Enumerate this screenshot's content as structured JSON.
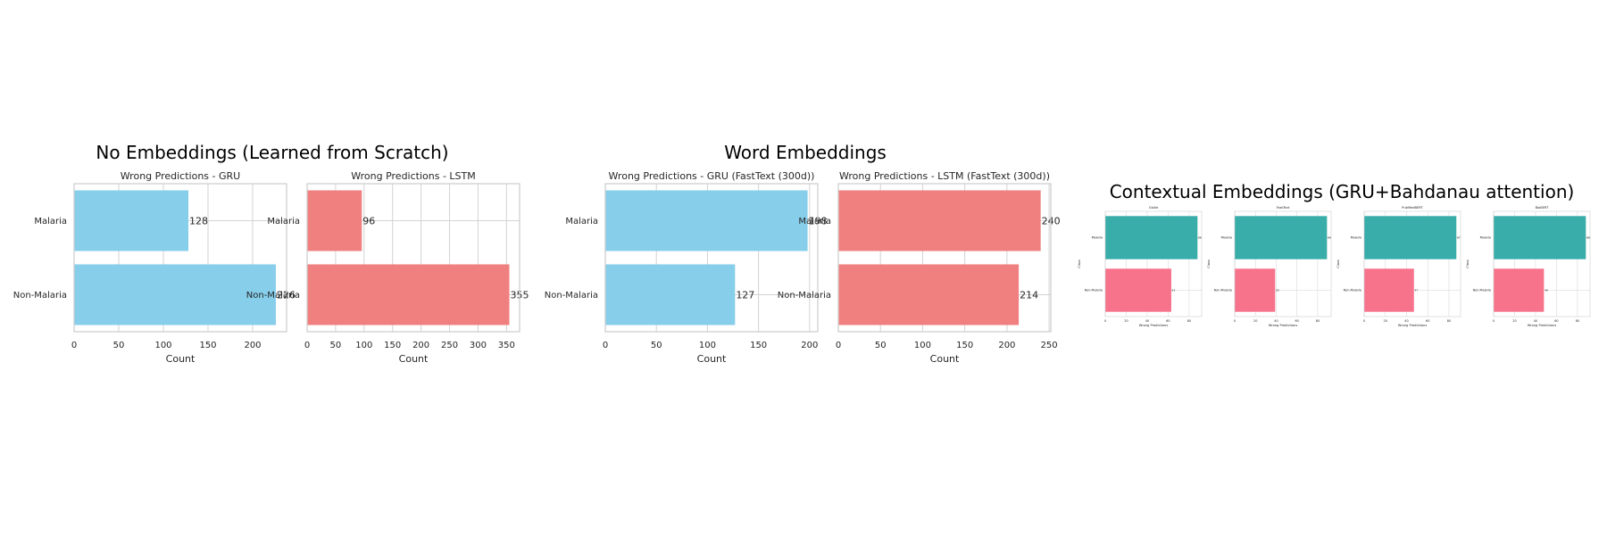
{
  "groups": [
    {
      "title": "No Embeddings (Learned from Scratch)"
    },
    {
      "title": "Word Embeddings"
    },
    {
      "title": "Contextual Embeddings (GRU+Bahdanau attention)"
    }
  ],
  "colors": {
    "gru": "#87CEEB",
    "lstm": "#F08080",
    "ctx_malaria": "#38ADA9",
    "ctx_non_malaria": "#F7738C",
    "grid": "#D3D3D3",
    "spine": "#CCCCCC",
    "text": "#262626"
  },
  "chart_data": [
    {
      "type": "bar",
      "orientation": "horizontal",
      "title": "Wrong Predictions - GRU",
      "categories": [
        "Malaria",
        "Non-Malaria"
      ],
      "values": [
        128,
        226
      ],
      "xlabel": "Count",
      "ylabel": "",
      "xlim": [
        0,
        238
      ],
      "xticks": [
        0,
        50,
        100,
        150,
        200
      ],
      "color": "gru",
      "grid": true,
      "data_labels": true
    },
    {
      "type": "bar",
      "orientation": "horizontal",
      "title": "Wrong Predictions - LSTM",
      "categories": [
        "Malaria",
        "Non-Malaria"
      ],
      "values": [
        96,
        355
      ],
      "xlabel": "Count",
      "ylabel": "",
      "xlim": [
        0,
        373
      ],
      "xticks": [
        0,
        50,
        100,
        150,
        200,
        250,
        300,
        350
      ],
      "color": "lstm",
      "grid": true,
      "data_labels": true
    },
    {
      "type": "bar",
      "orientation": "horizontal",
      "title": "Wrong Predictions - GRU (FastText (300d))",
      "categories": [
        "Malaria",
        "Non-Malaria"
      ],
      "values": [
        198,
        127
      ],
      "xlabel": "Count",
      "ylabel": "",
      "xlim": [
        0,
        208
      ],
      "xticks": [
        0,
        50,
        100,
        150,
        200
      ],
      "color": "gru",
      "grid": true,
      "data_labels": true
    },
    {
      "type": "bar",
      "orientation": "horizontal",
      "title": "Wrong Predictions - LSTM (FastText (300d))",
      "categories": [
        "Malaria",
        "Non-Malaria"
      ],
      "values": [
        240,
        214
      ],
      "xlabel": "Count",
      "ylabel": "",
      "xlim": [
        0,
        252
      ],
      "xticks": [
        0,
        50,
        100,
        150,
        200,
        250
      ],
      "color": "lstm",
      "grid": true,
      "data_labels": true
    },
    {
      "type": "bar",
      "orientation": "horizontal",
      "title": "GloVe",
      "categories": [
        "Malaria",
        "Non-Malaria"
      ],
      "values": [
        88,
        63
      ],
      "xlabel": "Wrong Predictions",
      "ylabel": "Class",
      "xlim": [
        0,
        92
      ],
      "xticks": [
        0,
        20,
        40,
        60,
        80
      ],
      "colors": [
        "ctx_malaria",
        "ctx_non_malaria"
      ],
      "grid": true,
      "data_labels": true
    },
    {
      "type": "bar",
      "orientation": "horizontal",
      "title": "FastText",
      "categories": [
        "Malaria",
        "Non-Malaria"
      ],
      "values": [
        89,
        39
      ],
      "xlabel": "Wrong Predictions",
      "ylabel": "Class",
      "xlim": [
        0,
        93
      ],
      "xticks": [
        0,
        20,
        40,
        60,
        80
      ],
      "colors": [
        "ctx_malaria",
        "ctx_non_malaria"
      ],
      "grid": true,
      "data_labels": true
    },
    {
      "type": "bar",
      "orientation": "horizontal",
      "title": "PubMedBERT",
      "categories": [
        "Malaria",
        "Non-Malaria"
      ],
      "values": [
        87,
        47
      ],
      "xlabel": "Wrong Predictions",
      "ylabel": "Class",
      "xlim": [
        0,
        91
      ],
      "xticks": [
        0,
        20,
        40,
        60,
        80
      ],
      "colors": [
        "ctx_malaria",
        "ctx_non_malaria"
      ],
      "grid": true,
      "data_labels": true
    },
    {
      "type": "bar",
      "orientation": "horizontal",
      "title": "BioBERT",
      "categories": [
        "Malaria",
        "Non-Malaria"
      ],
      "values": [
        88,
        48
      ],
      "xlabel": "Wrong Predictions",
      "ylabel": "Class",
      "xlim": [
        0,
        92
      ],
      "xticks": [
        0,
        20,
        40,
        60,
        80
      ],
      "colors": [
        "ctx_malaria",
        "ctx_non_malaria"
      ],
      "grid": true,
      "data_labels": true
    }
  ]
}
